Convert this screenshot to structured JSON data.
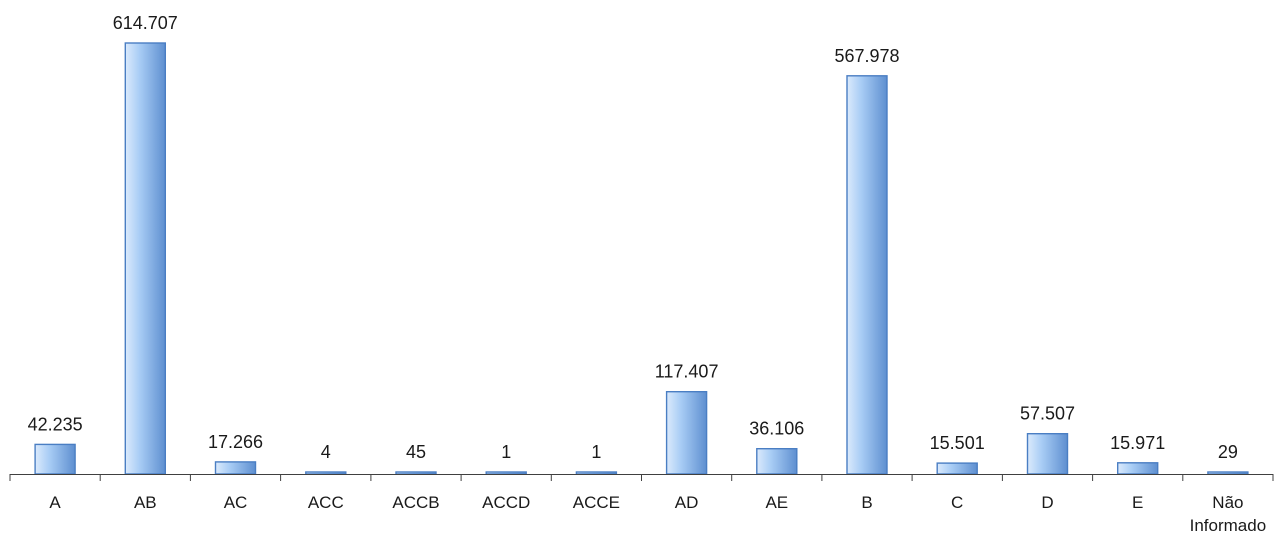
{
  "chart_data": {
    "type": "bar",
    "categories": [
      "A",
      "AB",
      "AC",
      "ACC",
      "ACCB",
      "ACCD",
      "ACCE",
      "AD",
      "AE",
      "B",
      "C",
      "D",
      "E",
      "Não Informado"
    ],
    "values": [
      42235,
      614707,
      17266,
      4,
      45,
      1,
      1,
      117407,
      36106,
      567978,
      15501,
      57507,
      15971,
      29
    ],
    "value_labels": [
      "42.235",
      "614.707",
      "17.266",
      "4",
      "45",
      "1",
      "1",
      "117.407",
      "36.106",
      "567.978",
      "15.501",
      "57.507",
      "15.971",
      "29"
    ],
    "title": "",
    "xlabel": "",
    "ylabel": "",
    "ylim": [
      0,
      614707
    ],
    "grid": false,
    "legend": "none",
    "colors": {
      "bar_light": "#dbeafc",
      "bar_mid": "#a9cdf5",
      "bar_dark": "#5e8fd0",
      "bar_stroke": "#4a7ec3",
      "axis": "#404040",
      "text": "#1a1a1a"
    }
  }
}
